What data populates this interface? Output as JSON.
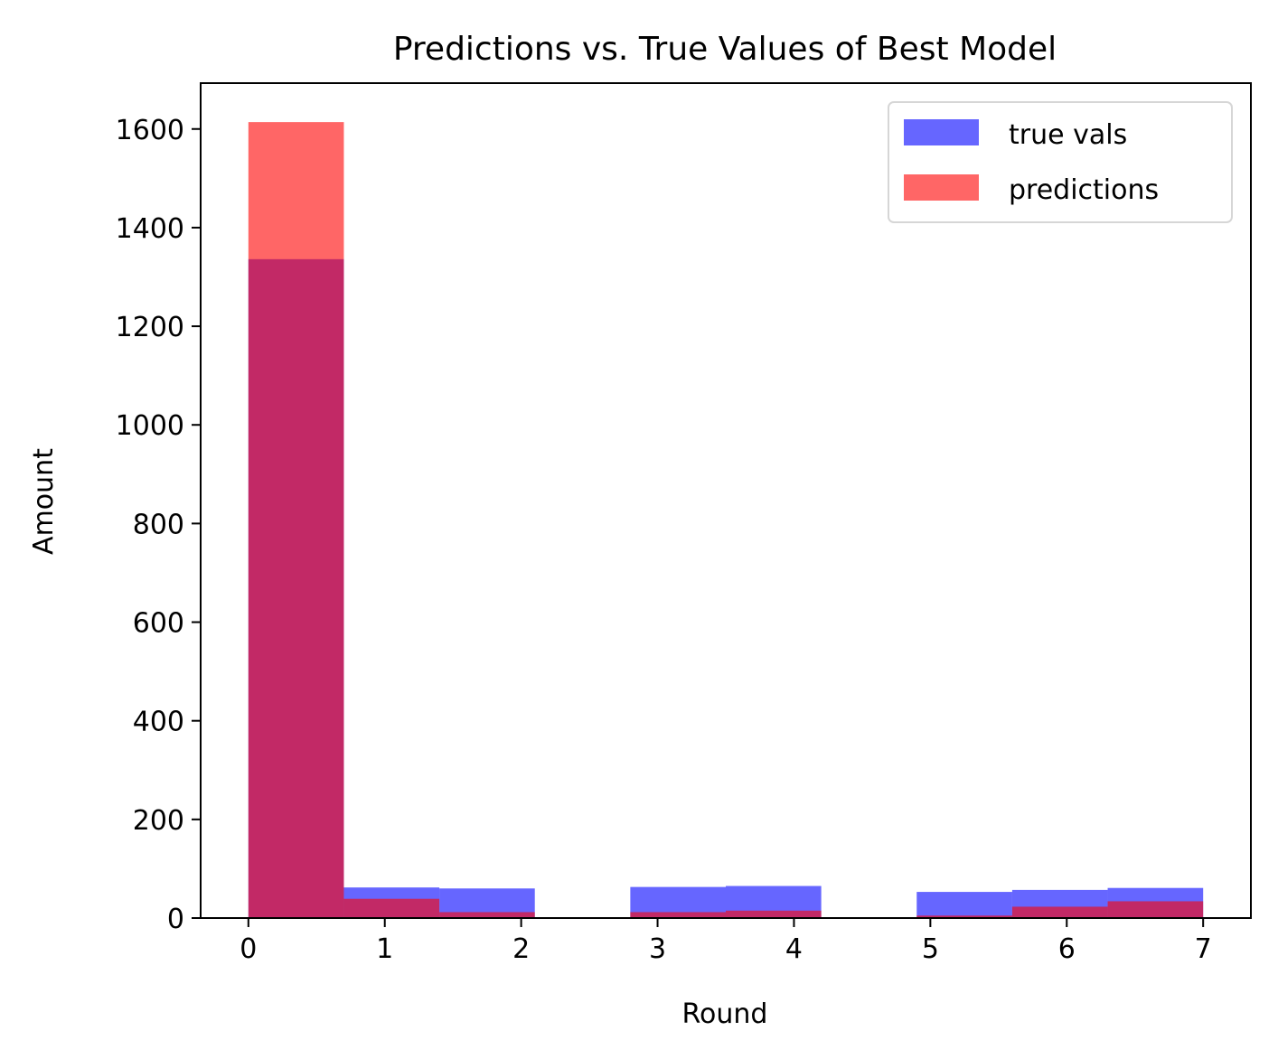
{
  "chart_data": {
    "type": "bar",
    "subtype": "overlapping-histogram",
    "title": "Predictions vs. True Values of Best Model",
    "xlabel": "Round",
    "ylabel": "Amount",
    "xlim": [
      -0.35,
      7.35
    ],
    "ylim": [
      0,
      1693
    ],
    "xticks": [
      0,
      1,
      2,
      3,
      4,
      5,
      6,
      7
    ],
    "yticks": [
      0,
      200,
      400,
      600,
      800,
      1000,
      1200,
      1400,
      1600
    ],
    "bin_edges": [
      0,
      0.7,
      1.4,
      2.1,
      2.8,
      3.5,
      4.2,
      4.9,
      5.6,
      6.3,
      7.0
    ],
    "grid": false,
    "legend_position": "top-right",
    "series": [
      {
        "name": "true vals",
        "color": "#0000ff",
        "alpha": 0.6,
        "values": [
          1336,
          62,
          60,
          0,
          63,
          65,
          0,
          53,
          57,
          61
        ]
      },
      {
        "name": "predictions",
        "color": "#ff0000",
        "alpha": 0.6,
        "values": [
          1614,
          39,
          12,
          0,
          12,
          15,
          0,
          5,
          23,
          34
        ]
      }
    ]
  }
}
